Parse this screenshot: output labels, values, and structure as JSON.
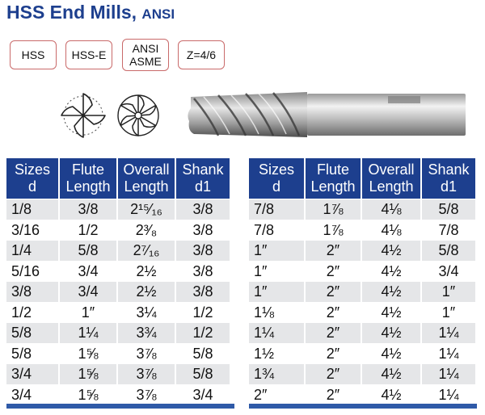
{
  "title": {
    "main": "HSS End Mills,",
    "sub": "ANSI"
  },
  "badges": [
    {
      "label": "HSS"
    },
    {
      "label": "HSS-E"
    },
    {
      "line1": "ANSI",
      "line2": "ASME"
    },
    {
      "label": "Z=4/6"
    }
  ],
  "icons": [
    "four-flute-cross-section-icon",
    "six-flute-cross-section-icon",
    "end-mill-tool-image"
  ],
  "colors": {
    "header": "#1d3f8e",
    "row_shade": "#e5e6e8",
    "badge_border": "#c96a6a",
    "title": "#1d3f8e"
  },
  "headers": [
    {
      "l1": "Sizes",
      "l2": "d"
    },
    {
      "l1": "Flute",
      "l2": "Length"
    },
    {
      "l1": "Overall",
      "l2": "Length"
    },
    {
      "l1": "Shank",
      "l2": "d1"
    }
  ],
  "left_rows": [
    [
      "1/8",
      "3/8",
      "2¹⁵⁄₁₆",
      "3/8"
    ],
    [
      "3/16",
      "1/2",
      "2³⁄₈",
      "3/8"
    ],
    [
      "1/4",
      "5/8",
      "2⁷⁄₁₆",
      "3/8"
    ],
    [
      "5/16",
      "3/4",
      "2½",
      "3/8"
    ],
    [
      "3/8",
      "3/4",
      "2½",
      "3/8"
    ],
    [
      "1/2",
      "1″",
      "3¼",
      "1/2"
    ],
    [
      "5/8",
      "1¼",
      "3¾",
      "1/2"
    ],
    [
      "5/8",
      "1⅝",
      "3⅞",
      "5/8"
    ],
    [
      "3/4",
      "1⅝",
      "3⅞",
      "5/8"
    ],
    [
      "3/4",
      "1⅝",
      "3⅞",
      "3/4"
    ]
  ],
  "right_rows": [
    [
      "7/8",
      "1⅞",
      "4⅛",
      "5/8"
    ],
    [
      "7/8",
      "1⅞",
      "4⅛",
      "7/8"
    ],
    [
      "1″",
      "2″",
      "4½",
      "5/8"
    ],
    [
      "1″",
      "2″",
      "4½",
      "3/4"
    ],
    [
      "1″",
      "2″",
      "4½",
      "1″"
    ],
    [
      "1⅛",
      "2″",
      "4½",
      "1″"
    ],
    [
      "1¼",
      "2″",
      "4½",
      "1¼"
    ],
    [
      "1½",
      "2″",
      "4½",
      "1¼"
    ],
    [
      "1¾",
      "2″",
      "4½",
      "1¼"
    ],
    [
      "2″",
      "2″",
      "4½",
      "1¼"
    ]
  ]
}
